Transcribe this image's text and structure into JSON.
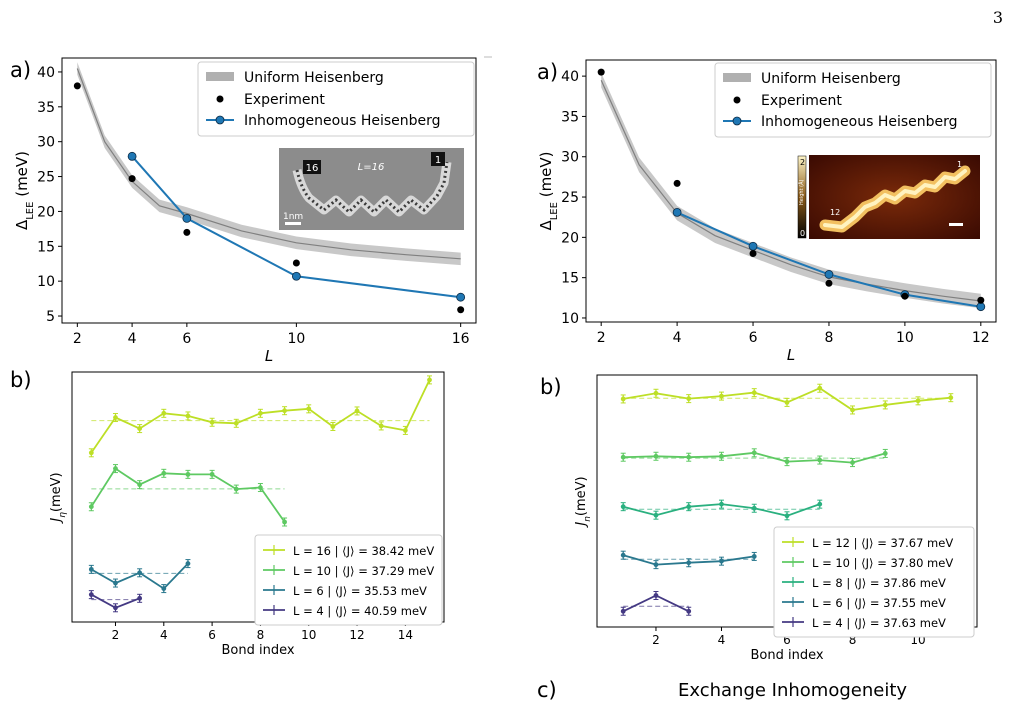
{
  "page_number": "3",
  "labels": {
    "a_left": "a)",
    "a_right": "a)",
    "b_left": "b)",
    "b_right": "b)",
    "c_right": "c)",
    "c_heading": "Exchange Inhomogeneity"
  },
  "colors": {
    "inhomog": "#1f77b4",
    "band": "#b0b0b0",
    "curve": "#808080",
    "L16": "#bddf26",
    "L12": "#bddf26",
    "L10": "#5ec962",
    "L8": "#2ab07f",
    "L6": "#2a788e",
    "L4": "#443983"
  },
  "inset_left": {
    "label_a": "16",
    "label_b": "1",
    "title": "L=16",
    "scale": "1nm"
  },
  "inset_right": {
    "label_a": "1",
    "label_b": "12",
    "cbar_top": "2",
    "cbar_bottom": "0",
    "cbar_label": "Height (Å)"
  },
  "chart_data": [
    {
      "type": "line",
      "panel": "a-left",
      "xlabel": "L",
      "ylabel": "Δ_LEE (meV)",
      "xticks": [
        2,
        4,
        6,
        10,
        16
      ],
      "yticks": [
        5,
        10,
        15,
        20,
        25,
        30,
        35,
        40
      ],
      "ylim": [
        4,
        42
      ],
      "legend": [
        "Uniform Heisenberg",
        "Experiment",
        "Inhomogeneous Heisenberg"
      ],
      "experiment": {
        "x": [
          2,
          4,
          6,
          10,
          16
        ],
        "y": [
          38,
          24.7,
          17,
          12.6,
          5.9
        ]
      },
      "inhomogeneous": {
        "x": [
          4,
          6,
          10,
          16
        ],
        "y": [
          27.9,
          19,
          10.7,
          7.7
        ]
      },
      "uniform_curve": {
        "x": [
          2,
          3,
          4,
          5,
          6,
          8,
          10,
          12,
          14,
          16
        ],
        "y": [
          40.5,
          30,
          24.3,
          20.8,
          19.7,
          17.2,
          15.5,
          14.5,
          13.8,
          13.2
        ]
      }
    },
    {
      "type": "line",
      "panel": "a-right",
      "xlabel": "L",
      "ylabel": "Δ_LEE (meV)",
      "xticks": [
        2,
        4,
        6,
        8,
        10,
        12
      ],
      "yticks": [
        10,
        15,
        20,
        25,
        30,
        35,
        40
      ],
      "ylim": [
        9.5,
        42
      ],
      "legend": [
        "Uniform Heisenberg",
        "Experiment",
        "Inhomogeneous Heisenberg"
      ],
      "experiment": {
        "x": [
          2,
          4,
          6,
          8,
          10,
          12
        ],
        "y": [
          40.5,
          26.7,
          18,
          14.3,
          12.7,
          12.2
        ]
      },
      "inhomogeneous": {
        "x": [
          4,
          6,
          8,
          10,
          12
        ],
        "y": [
          23.1,
          18.9,
          15.4,
          12.9,
          11.4
        ]
      },
      "uniform_curve": {
        "x": [
          2,
          3,
          4,
          5,
          6,
          7,
          8,
          9,
          10,
          11,
          12
        ],
        "y": [
          39.5,
          29,
          23,
          20.2,
          18.4,
          16.6,
          15.1,
          14.2,
          13.4,
          12.7,
          12.1
        ]
      }
    },
    {
      "type": "line",
      "panel": "b-left",
      "xlabel": "Bond index",
      "ylabel": "J_η(meV)",
      "xticks": [
        2,
        4,
        6,
        8,
        10,
        12,
        14
      ],
      "series": [
        {
          "name": "L = 16 | ⟨J⟩ = 38.42 meV",
          "color": "#bddf26",
          "x": [
            1,
            2,
            3,
            4,
            5,
            6,
            7,
            8,
            9,
            10,
            11,
            12,
            13,
            14,
            15
          ],
          "y": [
            33.3,
            46.7,
            42.5,
            48.3,
            47.3,
            44.9,
            44.5,
            48.3,
            49.3,
            50.0,
            43.3,
            49.2,
            43.5,
            41.8,
            61.0
          ],
          "mean": 45.5
        },
        {
          "name": "L = 10 | ⟨J⟩ = 37.29 meV",
          "color": "#5ec962",
          "x": [
            1,
            2,
            3,
            4,
            5,
            6,
            7,
            8,
            9
          ],
          "y": [
            12.8,
            27.3,
            21.2,
            25.5,
            25.1,
            25.1,
            19.5,
            20.1,
            7.0
          ],
          "mean": 19.6
        },
        {
          "name": "L = 6 | ⟨J⟩ = 35.53 meV",
          "color": "#2a788e",
          "x": [
            1,
            2,
            3,
            4,
            5
          ],
          "y": [
            -11.0,
            -16.2,
            -12.3,
            -18.3,
            -8.8
          ],
          "mean": -12.5
        },
        {
          "name": "L = 4 | ⟨J⟩ = 40.59 meV",
          "color": "#443983",
          "x": [
            1,
            2,
            3
          ],
          "y": [
            -20.6,
            -25.6,
            -22.0
          ],
          "mean": -22.5
        }
      ]
    },
    {
      "type": "line",
      "panel": "b-right",
      "xlabel": "Bond index",
      "ylabel": "J_n(meV)",
      "xticks": [
        2,
        4,
        6,
        8,
        10
      ],
      "series": [
        {
          "name": "L = 12 | ⟨J⟩ = 37.67 meV",
          "color": "#bddf26",
          "x": [
            1,
            2,
            3,
            4,
            5,
            6,
            7,
            8,
            9,
            10,
            11
          ],
          "y": [
            40.4,
            42.2,
            40.5,
            41.3,
            42.4,
            39.3,
            43.8,
            36.9,
            38.5,
            39.8,
            40.8
          ],
          "mean": 40.6
        },
        {
          "name": "L = 10 | ⟨J⟩ = 37.80 meV",
          "color": "#5ec962",
          "x": [
            1,
            2,
            3,
            4,
            5,
            6,
            7,
            8,
            9
          ],
          "y": [
            21.9,
            22.2,
            21.9,
            22.2,
            23.3,
            20.5,
            21.0,
            20.2,
            23.1
          ],
          "mean": 21.6
        },
        {
          "name": "L = 8 | ⟨J⟩ = 37.86 meV",
          "color": "#2ab07f",
          "x": [
            1,
            2,
            3,
            4,
            5,
            6,
            7
          ],
          "y": [
            6.2,
            3.5,
            6.2,
            7.0,
            5.7,
            3.3,
            7.0
          ],
          "mean": 5.4
        },
        {
          "name": "L = 6 | ⟨J⟩ = 37.55 meV",
          "color": "#2a788e",
          "x": [
            1,
            2,
            3,
            4,
            5
          ],
          "y": [
            -9.2,
            -12.2,
            -11.6,
            -11.1,
            -9.6
          ],
          "mean": -10.5
        },
        {
          "name": "L = 4 | ⟨J⟩ = 37.63 meV",
          "color": "#443983",
          "x": [
            1,
            2,
            3
          ],
          "y": [
            -27.0,
            -22.0,
            -27.0
          ],
          "mean": -25.4
        }
      ]
    }
  ]
}
